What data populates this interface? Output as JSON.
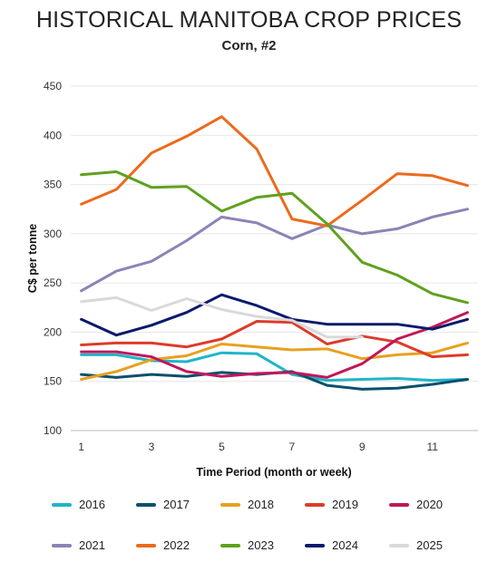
{
  "chart_data": {
    "type": "line",
    "title": "HISTORICAL MANITOBA CROP PRICES",
    "subtitle": "Corn, #2",
    "xlabel": "Time Period (month or week)",
    "ylabel": "C$ per tonne",
    "xlim": [
      0.7,
      12.3
    ],
    "ylim": [
      100,
      450
    ],
    "xticks": [
      1,
      3,
      5,
      7,
      9,
      11
    ],
    "yticks": [
      100,
      150,
      200,
      250,
      300,
      350,
      400,
      450
    ],
    "grid": "horizontal",
    "legend_position": "bottom",
    "x": [
      1,
      2,
      3,
      4,
      5,
      6,
      7,
      8,
      9,
      10,
      11,
      12
    ],
    "series": [
      {
        "name": "2016",
        "color": "#1fb5c9",
        "values": [
          177,
          177,
          171,
          170,
          179,
          178,
          157,
          151,
          152,
          153,
          151,
          152
        ]
      },
      {
        "name": "2017",
        "color": "#0b4f6c",
        "values": [
          157,
          154,
          157,
          155,
          159,
          157,
          160,
          146,
          142,
          143,
          147,
          152
        ]
      },
      {
        "name": "2018",
        "color": "#e8a020",
        "values": [
          152,
          160,
          172,
          176,
          188,
          185,
          182,
          183,
          173,
          177,
          179,
          189
        ]
      },
      {
        "name": "2019",
        "color": "#dd3b2a",
        "values": [
          187,
          189,
          189,
          185,
          193,
          211,
          210,
          188,
          196,
          190,
          175,
          177
        ]
      },
      {
        "name": "2020",
        "color": "#c0185a",
        "values": [
          180,
          180,
          175,
          160,
          155,
          158,
          159,
          154,
          168,
          193,
          205,
          220
        ]
      },
      {
        "name": "2021",
        "color": "#8a84b6",
        "values": [
          242,
          262,
          272,
          293,
          317,
          311,
          295,
          309,
          300,
          305,
          317,
          325
        ]
      },
      {
        "name": "2022",
        "color": "#ec6a1c",
        "values": [
          330,
          345,
          382,
          399,
          419,
          386,
          315,
          308,
          334,
          361,
          359,
          349
        ]
      },
      {
        "name": "2023",
        "color": "#5fa11f",
        "values": [
          360,
          363,
          347,
          348,
          323,
          337,
          341,
          310,
          271,
          258,
          239,
          230
        ]
      },
      {
        "name": "2024",
        "color": "#0c1a6b",
        "values": [
          213,
          197,
          207,
          220,
          238,
          227,
          213,
          208,
          208,
          208,
          203,
          213
        ]
      },
      {
        "name": "2025",
        "color": "#d9d9d9",
        "values": [
          231,
          235,
          222,
          234,
          223,
          216,
          212,
          195,
          195,
          null,
          null,
          null
        ]
      }
    ]
  }
}
